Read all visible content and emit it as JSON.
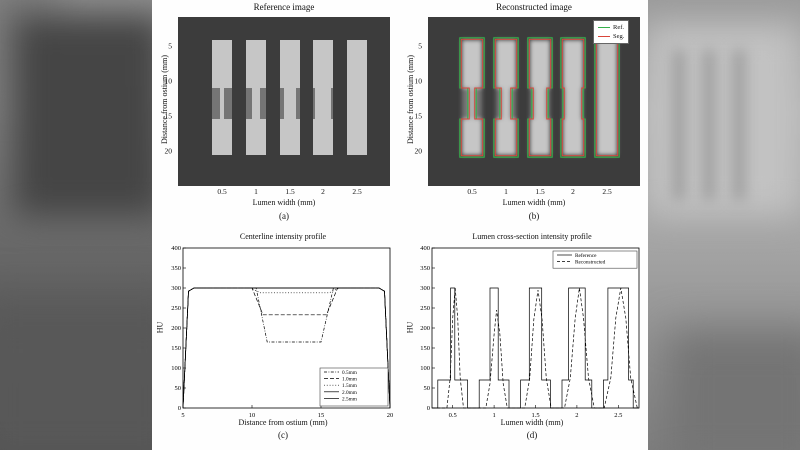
{
  "figure": {
    "panels": {
      "a": {
        "title": "Reference image",
        "xlabel": "Lumen width (mm)",
        "ylabel": "Distance from ostium (mm)",
        "caption": "(a)",
        "xtick_labels": [
          "0.5",
          "1",
          "1.5",
          "2",
          "2.5"
        ],
        "ytick_labels": [
          "5",
          "10",
          "15",
          "20"
        ]
      },
      "b": {
        "title": "Reconstructed image",
        "xlabel": "Lumen width (mm)",
        "ylabel": "Distance from ostium (mm)",
        "caption": "(b)",
        "xtick_labels": [
          "0.5",
          "1",
          "1.5",
          "2",
          "2.5"
        ],
        "ytick_labels": [
          "5",
          "10",
          "15",
          "20"
        ],
        "legend": {
          "ref_label": "Ref.",
          "seg_label": "Seg.",
          "ref_color": "#35b04a",
          "seg_color": "#d9453a"
        }
      },
      "c": {
        "caption": "(c)"
      },
      "d": {
        "caption": "(d)"
      }
    }
  },
  "phantom": {
    "background": "#3c3c3c",
    "bar": "#c6c6c6",
    "plaque": "#757575",
    "contour_ref": "#35b04a",
    "contour_seg": "#d9453a",
    "wide_half": 10,
    "rows": [
      23,
      71,
      102,
      138
    ],
    "centers": [
      44,
      78,
      112,
      145,
      179
    ],
    "lumen_half": [
      2,
      4,
      6,
      8,
      10
    ],
    "ytick_y": [
      29,
      64,
      99,
      134
    ],
    "lumen_widths_mm": [
      0.5,
      1.0,
      1.5,
      2.0,
      2.5
    ]
  },
  "chart_data": [
    {
      "id": "chart-c",
      "type": "line",
      "title": "Centerline intensity profile",
      "xlabel": "Distance from ostium (mm)",
      "ylabel": "HU",
      "xlim": [
        5,
        20
      ],
      "ylim": [
        0,
        400
      ],
      "xticks": [
        5,
        10,
        15,
        20
      ],
      "xtick_labels": [
        "5",
        "10",
        "15",
        "20"
      ],
      "yticks": [
        0,
        50,
        100,
        150,
        200,
        250,
        300,
        350,
        400
      ],
      "ytick_labels": [
        "0",
        "50",
        "100",
        "150",
        "200",
        "250",
        "300",
        "350",
        "400"
      ],
      "legend_position": "bottom-right",
      "grid": false,
      "series": [
        {
          "name": "0.5mm",
          "dash": "3 1.5 0.8 1.5",
          "points": [
            [
              5,
              0
            ],
            [
              5.4,
              292
            ],
            [
              5.8,
              300
            ],
            [
              10.3,
              300
            ],
            [
              11.1,
              165
            ],
            [
              15.0,
              165
            ],
            [
              15.9,
              300
            ],
            [
              19.2,
              300
            ],
            [
              19.6,
              292
            ],
            [
              20,
              0
            ]
          ]
        },
        {
          "name": "1.0mm",
          "dash": "4 2",
          "points": [
            [
              5,
              0
            ],
            [
              5.4,
              292
            ],
            [
              5.8,
              300
            ],
            [
              10.0,
              300
            ],
            [
              10.8,
              233
            ],
            [
              15.4,
              233
            ],
            [
              16.2,
              300
            ],
            [
              19.2,
              300
            ],
            [
              19.6,
              292
            ],
            [
              20,
              0
            ]
          ]
        },
        {
          "name": "1.5mm",
          "dash": "1 1.8",
          "points": [
            [
              5,
              0
            ],
            [
              5.4,
              292
            ],
            [
              5.8,
              300
            ],
            [
              9.9,
              300
            ],
            [
              10.6,
              288
            ],
            [
              15.6,
              288
            ],
            [
              16.3,
              300
            ],
            [
              19.2,
              300
            ],
            [
              19.6,
              292
            ],
            [
              20,
              0
            ]
          ]
        },
        {
          "name": "2.0mm",
          "dash": "",
          "points": [
            [
              5,
              0
            ],
            [
              5.4,
              292
            ],
            [
              5.8,
              300
            ],
            [
              19.2,
              300
            ],
            [
              19.6,
              292
            ],
            [
              20,
              0
            ]
          ]
        },
        {
          "name": "2.5mm",
          "dash": "",
          "points": [
            [
              5,
              0
            ],
            [
              5.4,
              292
            ],
            [
              5.8,
              300
            ],
            [
              19.2,
              300
            ],
            [
              19.6,
              292
            ],
            [
              20,
              0
            ]
          ]
        }
      ]
    },
    {
      "id": "chart-d",
      "type": "line",
      "title": "Lumen cross-section intensity profile",
      "xlabel": "Lumen width (mm)",
      "ylabel": "HU",
      "xlim": [
        0.25,
        2.75
      ],
      "ylim": [
        0,
        400
      ],
      "xticks": [
        0.5,
        1,
        1.5,
        2,
        2.5
      ],
      "xtick_labels": [
        "0.5",
        "1",
        "1.5",
        "2",
        "2.5"
      ],
      "yticks": [
        0,
        50,
        100,
        150,
        200,
        250,
        300,
        350,
        400
      ],
      "ytick_labels": [
        "0",
        "50",
        "100",
        "150",
        "200",
        "250",
        "300",
        "350",
        "400"
      ],
      "legend_position": "top-right",
      "grid": false,
      "series": [
        {
          "name": "Reference",
          "dash": "",
          "points": [
            [
              0.25,
              0
            ],
            [
              0.32,
              0
            ],
            [
              0.32,
              70
            ],
            [
              0.475,
              70
            ],
            [
              0.475,
              300
            ],
            [
              0.525,
              300
            ],
            [
              0.525,
              70
            ],
            [
              0.68,
              70
            ],
            [
              0.68,
              0
            ],
            [
              0.82,
              0
            ],
            [
              0.82,
              70
            ],
            [
              0.95,
              70
            ],
            [
              0.95,
              300
            ],
            [
              1.05,
              300
            ],
            [
              1.05,
              70
            ],
            [
              1.18,
              70
            ],
            [
              1.18,
              0
            ],
            [
              1.32,
              0
            ],
            [
              1.32,
              70
            ],
            [
              1.425,
              70
            ],
            [
              1.425,
              300
            ],
            [
              1.575,
              300
            ],
            [
              1.575,
              70
            ],
            [
              1.68,
              70
            ],
            [
              1.68,
              0
            ],
            [
              1.82,
              0
            ],
            [
              1.82,
              70
            ],
            [
              1.9,
              70
            ],
            [
              1.9,
              300
            ],
            [
              2.1,
              300
            ],
            [
              2.1,
              70
            ],
            [
              2.18,
              70
            ],
            [
              2.18,
              0
            ],
            [
              2.32,
              0
            ],
            [
              2.32,
              70
            ],
            [
              2.375,
              70
            ],
            [
              2.375,
              300
            ],
            [
              2.625,
              300
            ],
            [
              2.625,
              70
            ],
            [
              2.68,
              70
            ],
            [
              2.68,
              0
            ],
            [
              2.75,
              0
            ]
          ]
        },
        {
          "name": "Reconstructed",
          "dash": "3 2",
          "points": [
            [
              0.25,
              0
            ],
            [
              0.43,
              0
            ],
            [
              0.47,
              75
            ],
            [
              0.5,
              225
            ],
            [
              0.53,
              300
            ],
            [
              0.56,
              225
            ],
            [
              0.59,
              75
            ],
            [
              0.63,
              0
            ],
            [
              0.9,
              0
            ],
            [
              0.95,
              61
            ],
            [
              1.0,
              184
            ],
            [
              1.03,
              245
            ],
            [
              1.07,
              184
            ],
            [
              1.11,
              61
            ],
            [
              1.16,
              0
            ],
            [
              1.37,
              0
            ],
            [
              1.43,
              74
            ],
            [
              1.48,
              221
            ],
            [
              1.53,
              295
            ],
            [
              1.58,
              221
            ],
            [
              1.63,
              74
            ],
            [
              1.69,
              0
            ],
            [
              1.85,
              0
            ],
            [
              1.92,
              75
            ],
            [
              1.98,
              225
            ],
            [
              2.03,
              300
            ],
            [
              2.08,
              225
            ],
            [
              2.14,
              75
            ],
            [
              2.21,
              0
            ],
            [
              2.33,
              0
            ],
            [
              2.41,
              75
            ],
            [
              2.47,
              225
            ],
            [
              2.53,
              300
            ],
            [
              2.59,
              225
            ],
            [
              2.65,
              75
            ],
            [
              2.73,
              0
            ],
            [
              2.75,
              0
            ]
          ]
        }
      ]
    }
  ]
}
